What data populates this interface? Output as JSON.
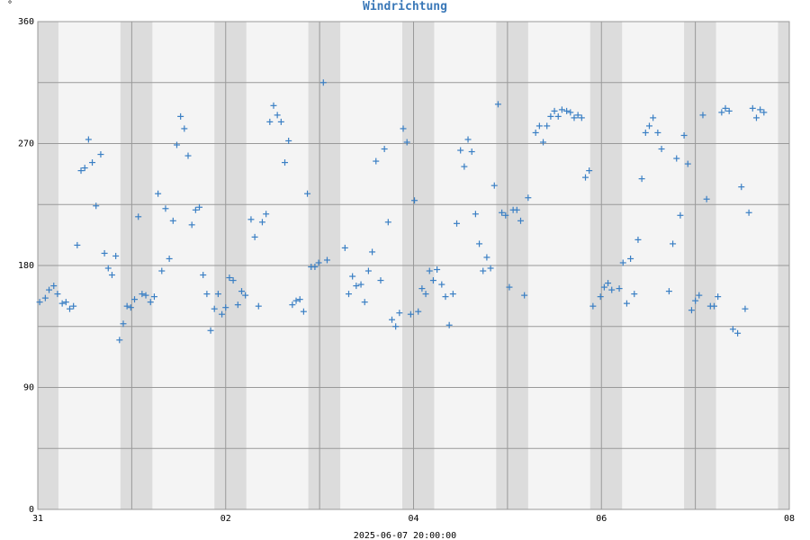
{
  "chart_data": {
    "type": "scatter",
    "title": "Windrichtung",
    "unit": "°",
    "footer": "2025-06-07 20:00:00",
    "x_tick_labels": [
      "31",
      "02",
      "04",
      "06",
      "08"
    ],
    "y_tick_labels": [
      "0",
      "90",
      "180",
      "270",
      "360"
    ],
    "ylim": [
      0,
      360
    ],
    "xlim_days": [
      0,
      8
    ],
    "grid": true,
    "night_band_color": "#dcdcdc",
    "plot_bg": "#f4f4f4",
    "point_color": "#3a7fc4",
    "title_color": "#3a78b8",
    "series": [
      {
        "points": [
          [
            0.02,
            153
          ],
          [
            0.08,
            156
          ],
          [
            0.12,
            162
          ],
          [
            0.17,
            165
          ],
          [
            0.21,
            159
          ],
          [
            0.26,
            152
          ],
          [
            0.3,
            153
          ],
          [
            0.34,
            148
          ],
          [
            0.38,
            150
          ],
          [
            0.42,
            195
          ],
          [
            0.46,
            250
          ],
          [
            0.5,
            252
          ],
          [
            0.54,
            273
          ],
          [
            0.58,
            256
          ],
          [
            0.62,
            224
          ],
          [
            0.67,
            262
          ],
          [
            0.71,
            189
          ],
          [
            0.75,
            178
          ],
          [
            0.79,
            173
          ],
          [
            0.83,
            187
          ],
          [
            0.87,
            125
          ],
          [
            0.91,
            137
          ],
          [
            0.95,
            150
          ],
          [
            0.99,
            149
          ],
          [
            1.03,
            155
          ],
          [
            1.07,
            216
          ],
          [
            1.11,
            159
          ],
          [
            1.15,
            158
          ],
          [
            1.2,
            153
          ],
          [
            1.24,
            157
          ],
          [
            1.28,
            233
          ],
          [
            1.32,
            176
          ],
          [
            1.36,
            222
          ],
          [
            1.4,
            185
          ],
          [
            1.44,
            213
          ],
          [
            1.48,
            269
          ],
          [
            1.52,
            290
          ],
          [
            1.56,
            281
          ],
          [
            1.6,
            261
          ],
          [
            1.64,
            210
          ],
          [
            1.68,
            221
          ],
          [
            1.72,
            223
          ],
          [
            1.76,
            173
          ],
          [
            1.8,
            159
          ],
          [
            1.84,
            132
          ],
          [
            1.88,
            148
          ],
          [
            1.92,
            159
          ],
          [
            1.96,
            144
          ],
          [
            2.0,
            149
          ],
          [
            2.04,
            171
          ],
          [
            2.08,
            169
          ],
          [
            2.13,
            151
          ],
          [
            2.17,
            161
          ],
          [
            2.21,
            158
          ],
          [
            2.27,
            214
          ],
          [
            2.31,
            201
          ],
          [
            2.35,
            150
          ],
          [
            2.39,
            212
          ],
          [
            2.43,
            218
          ],
          [
            2.47,
            286
          ],
          [
            2.51,
            298
          ],
          [
            2.55,
            291
          ],
          [
            2.59,
            286
          ],
          [
            2.63,
            256
          ],
          [
            2.67,
            272
          ],
          [
            2.71,
            151
          ],
          [
            2.75,
            154
          ],
          [
            2.79,
            155
          ],
          [
            2.83,
            146
          ],
          [
            2.87,
            233
          ],
          [
            2.91,
            179
          ],
          [
            2.95,
            179
          ],
          [
            2.99,
            182
          ],
          [
            3.04,
            315
          ],
          [
            3.08,
            184
          ],
          [
            3.27,
            193
          ],
          [
            3.31,
            159
          ],
          [
            3.35,
            172
          ],
          [
            3.39,
            165
          ],
          [
            3.44,
            166
          ],
          [
            3.48,
            153
          ],
          [
            3.52,
            176
          ],
          [
            3.56,
            190
          ],
          [
            3.6,
            257
          ],
          [
            3.65,
            169
          ],
          [
            3.69,
            266
          ],
          [
            3.73,
            212
          ],
          [
            3.77,
            140
          ],
          [
            3.81,
            135
          ],
          [
            3.85,
            145
          ],
          [
            3.89,
            281
          ],
          [
            3.93,
            271
          ],
          [
            3.97,
            144
          ],
          [
            4.01,
            228
          ],
          [
            4.05,
            146
          ],
          [
            4.09,
            163
          ],
          [
            4.13,
            159
          ],
          [
            4.17,
            176
          ],
          [
            4.21,
            169
          ],
          [
            4.25,
            177
          ],
          [
            4.3,
            166
          ],
          [
            4.34,
            157
          ],
          [
            4.38,
            136
          ],
          [
            4.42,
            159
          ],
          [
            4.46,
            211
          ],
          [
            4.5,
            265
          ],
          [
            4.54,
            253
          ],
          [
            4.58,
            273
          ],
          [
            4.62,
            264
          ],
          [
            4.66,
            218
          ],
          [
            4.7,
            196
          ],
          [
            4.74,
            176
          ],
          [
            4.78,
            186
          ],
          [
            4.82,
            178
          ],
          [
            4.86,
            239
          ],
          [
            4.9,
            299
          ],
          [
            4.94,
            219
          ],
          [
            4.98,
            217
          ],
          [
            5.02,
            164
          ],
          [
            5.06,
            221
          ],
          [
            5.1,
            221
          ],
          [
            5.14,
            213
          ],
          [
            5.18,
            158
          ],
          [
            5.22,
            230
          ],
          [
            5.3,
            278
          ],
          [
            5.34,
            283
          ],
          [
            5.38,
            271
          ],
          [
            5.42,
            283
          ],
          [
            5.46,
            290
          ],
          [
            5.5,
            294
          ],
          [
            5.54,
            290
          ],
          [
            5.58,
            295
          ],
          [
            5.63,
            294
          ],
          [
            5.67,
            293
          ],
          [
            5.71,
            289
          ],
          [
            5.75,
            291
          ],
          [
            5.79,
            289
          ],
          [
            5.83,
            245
          ],
          [
            5.87,
            250
          ],
          [
            5.91,
            150
          ],
          [
            5.99,
            157
          ],
          [
            6.03,
            164
          ],
          [
            6.07,
            167
          ],
          [
            6.11,
            162
          ],
          [
            6.19,
            163
          ],
          [
            6.23,
            182
          ],
          [
            6.27,
            152
          ],
          [
            6.31,
            185
          ],
          [
            6.35,
            159
          ],
          [
            6.39,
            199
          ],
          [
            6.43,
            244
          ],
          [
            6.47,
            278
          ],
          [
            6.51,
            283
          ],
          [
            6.55,
            289
          ],
          [
            6.6,
            278
          ],
          [
            6.64,
            266
          ],
          [
            6.72,
            161
          ],
          [
            6.76,
            196
          ],
          [
            6.8,
            259
          ],
          [
            6.84,
            217
          ],
          [
            6.88,
            276
          ],
          [
            6.92,
            255
          ],
          [
            6.96,
            147
          ],
          [
            7.0,
            154
          ],
          [
            7.04,
            158
          ],
          [
            7.08,
            291
          ],
          [
            7.12,
            229
          ],
          [
            7.16,
            150
          ],
          [
            7.2,
            150
          ],
          [
            7.24,
            157
          ],
          [
            7.28,
            293
          ],
          [
            7.32,
            296
          ],
          [
            7.36,
            294
          ],
          [
            7.4,
            133
          ],
          [
            7.45,
            130
          ],
          [
            7.49,
            238
          ],
          [
            7.53,
            148
          ],
          [
            7.57,
            219
          ],
          [
            7.61,
            296
          ],
          [
            7.65,
            289
          ],
          [
            7.69,
            295
          ],
          [
            7.73,
            293
          ]
        ]
      }
    ]
  }
}
